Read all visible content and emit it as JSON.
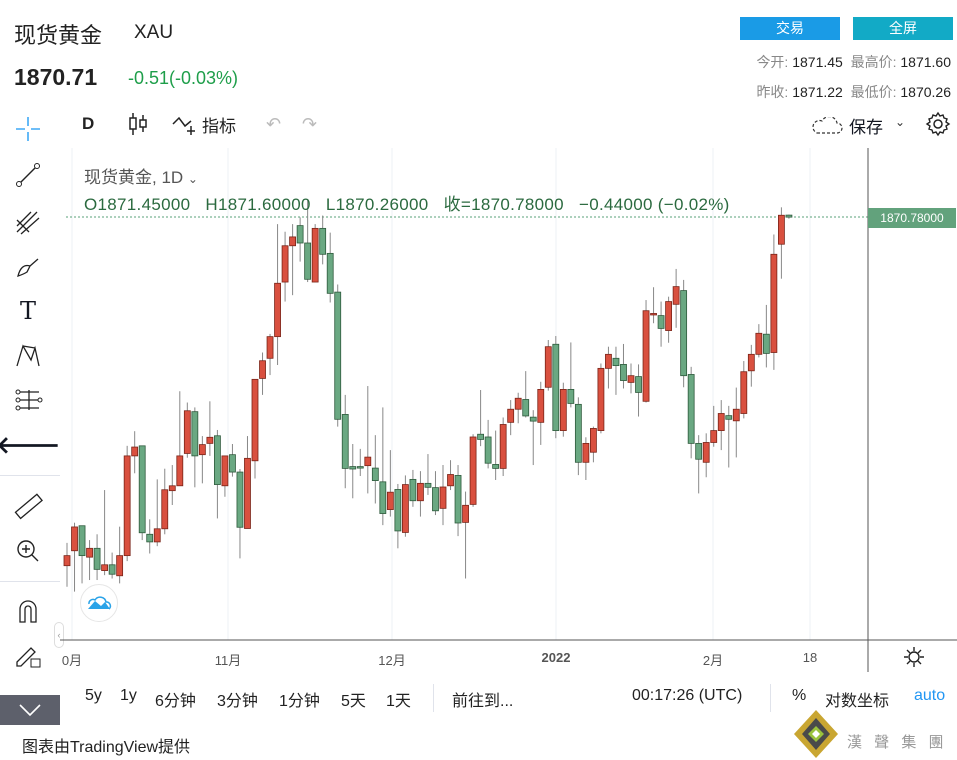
{
  "header": {
    "title": "现货黄金",
    "symbol": "XAU",
    "price": "1870.71",
    "change": "-0.51(-0.03%)",
    "trade_label": "交易",
    "fullscreen_label": "全屏",
    "open_label": "今开:",
    "open": "1871.45",
    "high_label": "最高价:",
    "high": "1871.60",
    "prev_close_label": "昨收:",
    "prev_close": "1871.22",
    "low_label": "最低价:",
    "low": "1870.26"
  },
  "toolbar": {
    "interval": "D",
    "indicators_label": "指标",
    "save_label": "保存"
  },
  "legend": {
    "name": "现货黄金, 1D",
    "o": "O1871.45000",
    "h": "H1871.60000",
    "l": "L1870.26000",
    "c": "收=1870.78000",
    "chg": "−0.44000 (−0.02%)"
  },
  "price_axis": {
    "last_label": "1870.78000"
  },
  "x_axis": {
    "labels": [
      "0月",
      "11月",
      "12月",
      "2022",
      "2月",
      "18"
    ]
  },
  "bottom_bar": {
    "ranges": [
      "5y",
      "1y",
      "6分钟",
      "3分钟",
      "1分钟",
      "5天",
      "1天"
    ],
    "goto": "前往到...",
    "time": "00:17:26 (UTC)",
    "percent": "%",
    "log": "对数坐标",
    "auto": "auto"
  },
  "footer": {
    "credit": "图表由TradingView提供",
    "logo_text": "漢 聲 集 團"
  },
  "colors": {
    "up": "#d9503f",
    "down": "#6aa882",
    "accent": "#1a9be6"
  },
  "chart_data": {
    "type": "candlestick",
    "interval": "1D",
    "up_color": "red",
    "down_color": "green",
    "ohlc": [
      [
        1756.5,
        1764.0,
        1749.6,
        1759.8
      ],
      [
        1761.4,
        1770.6,
        1748.0,
        1769.2
      ],
      [
        1769.6,
        1769.6,
        1750.7,
        1759.8
      ],
      [
        1759.3,
        1764.9,
        1751.8,
        1762.2
      ],
      [
        1762.2,
        1766.8,
        1751.8,
        1755.3
      ],
      [
        1754.9,
        1781.3,
        1753.4,
        1756.8
      ],
      [
        1756.8,
        1760.8,
        1752.3,
        1753.7
      ],
      [
        1753.2,
        1769.3,
        1750.7,
        1759.8
      ],
      [
        1759.8,
        1795.8,
        1758.0,
        1792.5
      ],
      [
        1792.5,
        1800.6,
        1786.8,
        1795.4
      ],
      [
        1795.8,
        1795.8,
        1764.9,
        1767.3
      ],
      [
        1766.8,
        1771.7,
        1760.5,
        1764.3
      ],
      [
        1764.3,
        1784.8,
        1762.9,
        1768.6
      ],
      [
        1768.6,
        1788.3,
        1766.8,
        1781.4
      ],
      [
        1781.1,
        1789.5,
        1776.4,
        1782.7
      ],
      [
        1782.7,
        1813.7,
        1782.7,
        1792.5
      ],
      [
        1793.3,
        1810.0,
        1791.9,
        1807.3
      ],
      [
        1807.0,
        1808.4,
        1782.2,
        1792.5
      ],
      [
        1792.9,
        1799.0,
        1783.5,
        1796.2
      ],
      [
        1796.6,
        1810.4,
        1792.5,
        1798.6
      ],
      [
        1799.1,
        1801.0,
        1772.0,
        1783.1
      ],
      [
        1782.7,
        1792.5,
        1779.1,
        1792.5
      ],
      [
        1792.9,
        1796.4,
        1785.7,
        1787.2
      ],
      [
        1787.2,
        1788.2,
        1758.9,
        1769.1
      ],
      [
        1768.7,
        1799.0,
        1768.7,
        1791.7
      ],
      [
        1790.9,
        1817.6,
        1785.1,
        1817.6
      ],
      [
        1817.9,
        1826.4,
        1812.5,
        1823.7
      ],
      [
        1824.5,
        1832.5,
        1819.0,
        1831.6
      ],
      [
        1831.6,
        1868.5,
        1822.3,
        1849.1
      ],
      [
        1849.5,
        1866.0,
        1843.1,
        1861.4
      ],
      [
        1861.4,
        1868.5,
        1845.2,
        1864.3
      ],
      [
        1868.0,
        1870.7,
        1856.2,
        1862.3
      ],
      [
        1862.3,
        1876.4,
        1849.5,
        1850.4
      ],
      [
        1849.5,
        1868.5,
        1849.5,
        1867.1
      ],
      [
        1867.1,
        1871.3,
        1855.3,
        1858.6
      ],
      [
        1858.9,
        1865.7,
        1842.8,
        1845.8
      ],
      [
        1846.2,
        1848.7,
        1802.1,
        1804.5
      ],
      [
        1806.1,
        1812.5,
        1781.9,
        1788.4
      ],
      [
        1789.0,
        1796.4,
        1778.6,
        1788.2
      ],
      [
        1789.0,
        1794.8,
        1785.9,
        1788.5
      ],
      [
        1789.3,
        1815.4,
        1780.2,
        1792.1
      ],
      [
        1788.5,
        1799.3,
        1776.9,
        1784.4
      ],
      [
        1784.0,
        1808.4,
        1769.8,
        1773.6
      ],
      [
        1774.9,
        1794.4,
        1772.6,
        1780.6
      ],
      [
        1781.5,
        1783.3,
        1762.2,
        1767.9
      ],
      [
        1767.4,
        1786.1,
        1766.0,
        1783.1
      ],
      [
        1784.8,
        1787.9,
        1775.8,
        1777.8
      ],
      [
        1777.8,
        1787.5,
        1772.6,
        1783.5
      ],
      [
        1783.5,
        1793.1,
        1779.7,
        1782.2
      ],
      [
        1782.1,
        1787.5,
        1773.1,
        1774.5
      ],
      [
        1775.3,
        1789.5,
        1769.8,
        1782.3
      ],
      [
        1782.7,
        1791.1,
        1781.3,
        1786.4
      ],
      [
        1786.1,
        1789.5,
        1766.2,
        1770.5
      ],
      [
        1770.7,
        1780.8,
        1752.3,
        1776.3
      ],
      [
        1776.6,
        1799.6,
        1775.8,
        1798.7
      ],
      [
        1799.6,
        1814.1,
        1795.7,
        1797.9
      ],
      [
        1798.7,
        1804.3,
        1788.4,
        1790.1
      ],
      [
        1789.7,
        1800.8,
        1784.6,
        1788.4
      ],
      [
        1788.4,
        1805.1,
        1785.9,
        1802.8
      ],
      [
        1803.5,
        1810.8,
        1799.3,
        1807.8
      ],
      [
        1807.8,
        1813.2,
        1803.2,
        1811.4
      ],
      [
        1811.0,
        1820.3,
        1805.1,
        1805.6
      ],
      [
        1805.2,
        1807.5,
        1789.5,
        1803.9
      ],
      [
        1803.5,
        1816.8,
        1796.1,
        1814.3
      ],
      [
        1815.0,
        1830.5,
        1813.9,
        1828.3
      ],
      [
        1829.1,
        1831.8,
        1798.3,
        1800.8
      ],
      [
        1800.8,
        1816.5,
        1798.8,
        1814.3
      ],
      [
        1814.3,
        1829.7,
        1808.4,
        1809.7
      ],
      [
        1809.4,
        1811.7,
        1786.2,
        1790.4
      ],
      [
        1790.4,
        1798.6,
        1784.6,
        1796.6
      ],
      [
        1793.7,
        1802.1,
        1790.4,
        1801.5
      ],
      [
        1800.8,
        1822.8,
        1799.9,
        1821.2
      ],
      [
        1821.2,
        1828.3,
        1814.6,
        1825.8
      ],
      [
        1824.5,
        1828.3,
        1812.5,
        1822.1
      ],
      [
        1822.5,
        1829.2,
        1814.6,
        1817.2
      ],
      [
        1816.6,
        1822.8,
        1813.0,
        1818.8
      ],
      [
        1818.5,
        1822.5,
        1805.4,
        1813.3
      ],
      [
        1810.4,
        1843.6,
        1810.0,
        1840.1
      ],
      [
        1839.1,
        1847.8,
        1836.0,
        1839.2
      ],
      [
        1838.5,
        1843.1,
        1828.3,
        1834.3
      ],
      [
        1833.6,
        1844.7,
        1829.6,
        1843.1
      ],
      [
        1842.2,
        1853.8,
        1834.5,
        1848.0
      ],
      [
        1846.7,
        1850.2,
        1815.0,
        1818.8
      ],
      [
        1819.2,
        1821.7,
        1791.7,
        1796.6
      ],
      [
        1796.6,
        1799.3,
        1780.2,
        1791.4
      ],
      [
        1790.4,
        1799.9,
        1785.5,
        1796.9
      ],
      [
        1796.9,
        1808.9,
        1795.5,
        1800.8
      ],
      [
        1800.8,
        1810.8,
        1794.4,
        1806.4
      ],
      [
        1805.7,
        1808.9,
        1788.7,
        1804.5
      ],
      [
        1804.0,
        1814.9,
        1792.0,
        1807.8
      ],
      [
        1806.4,
        1823.6,
        1804.8,
        1820.1
      ],
      [
        1820.4,
        1828.9,
        1815.2,
        1825.8
      ],
      [
        1825.8,
        1835.7,
        1824.8,
        1832.7
      ],
      [
        1832.4,
        1842.0,
        1821.5,
        1826.1
      ],
      [
        1826.4,
        1865.1,
        1820.7,
        1858.6
      ],
      [
        1861.9,
        1874.0,
        1850.6,
        1871.4
      ],
      [
        1871.45,
        1871.6,
        1870.26,
        1870.78
      ]
    ],
    "last_price": 1870.78,
    "x_tick_labels": [
      "0月",
      "11月",
      "12月",
      "2022",
      "2月",
      "18"
    ]
  }
}
